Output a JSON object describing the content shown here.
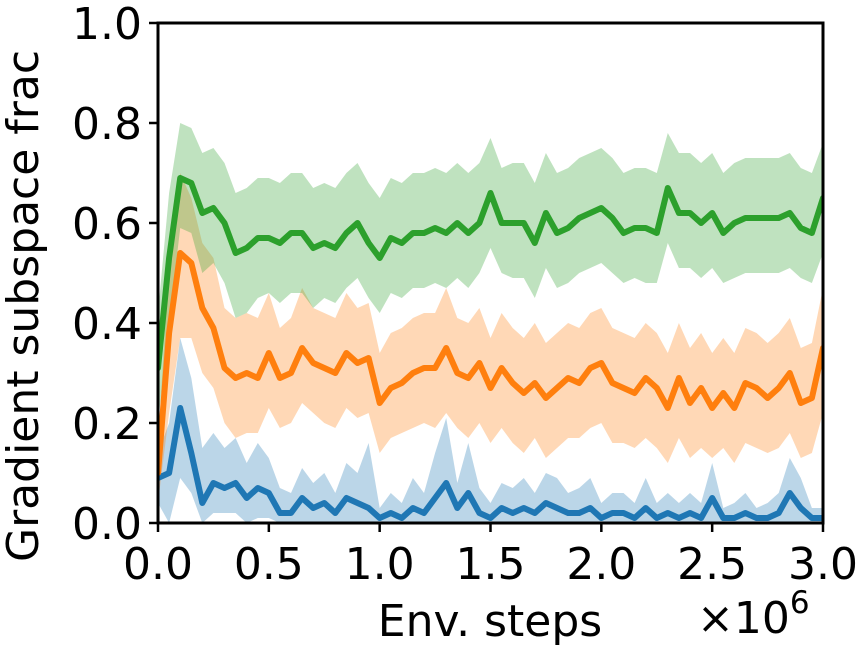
{
  "chart_data": {
    "type": "line",
    "title": "",
    "xlabel": "Env. steps",
    "x_multiplier": "×10",
    "x_multiplier_exp": "6",
    "ylabel": "Gradient subspace frac",
    "xlim": [
      0.0,
      3.0
    ],
    "ylim": [
      0.0,
      1.0
    ],
    "grid": false,
    "legend": "none",
    "xticks": [
      "0.0",
      "0.5",
      "1.0",
      "1.5",
      "2.0",
      "2.5",
      "3.0"
    ],
    "yticks": [
      "0.0",
      "0.2",
      "0.4",
      "0.6",
      "0.8",
      "1.0"
    ],
    "series": [
      {
        "color": "#1f77b4",
        "x": [
          0.0,
          0.05,
          0.1,
          0.15,
          0.2,
          0.25,
          0.3,
          0.35,
          0.4,
          0.45,
          0.5,
          0.55,
          0.6,
          0.65,
          0.7,
          0.75,
          0.8,
          0.85,
          0.9,
          0.95,
          1.0,
          1.05,
          1.1,
          1.15,
          1.2,
          1.25,
          1.3,
          1.35,
          1.4,
          1.45,
          1.5,
          1.55,
          1.6,
          1.65,
          1.7,
          1.75,
          1.8,
          1.85,
          1.9,
          1.95,
          2.0,
          2.05,
          2.1,
          2.15,
          2.2,
          2.25,
          2.3,
          2.35,
          2.4,
          2.45,
          2.5,
          2.55,
          2.6,
          2.65,
          2.7,
          2.75,
          2.8,
          2.85,
          2.9,
          2.95,
          3.0
        ],
        "y": [
          0.09,
          0.1,
          0.23,
          0.14,
          0.04,
          0.08,
          0.07,
          0.08,
          0.05,
          0.07,
          0.06,
          0.02,
          0.02,
          0.05,
          0.03,
          0.04,
          0.02,
          0.05,
          0.04,
          0.03,
          0.01,
          0.02,
          0.01,
          0.03,
          0.02,
          0.05,
          0.08,
          0.03,
          0.06,
          0.02,
          0.01,
          0.03,
          0.02,
          0.03,
          0.02,
          0.04,
          0.03,
          0.02,
          0.02,
          0.03,
          0.01,
          0.02,
          0.02,
          0.01,
          0.03,
          0.01,
          0.02,
          0.01,
          0.02,
          0.01,
          0.05,
          0.01,
          0.01,
          0.02,
          0.01,
          0.01,
          0.02,
          0.06,
          0.03,
          0.01,
          0.01
        ],
        "lower": [
          0.04,
          0.0,
          0.09,
          0.06,
          0.0,
          0.02,
          0.02,
          0.02,
          0.0,
          0.01,
          0.01,
          0.0,
          0.0,
          0.0,
          0.0,
          0.0,
          0.0,
          0.0,
          0.0,
          0.0,
          0.0,
          0.0,
          0.0,
          0.0,
          0.0,
          0.0,
          0.0,
          0.0,
          0.0,
          0.0,
          0.0,
          0.0,
          0.0,
          0.0,
          0.0,
          0.0,
          0.0,
          0.0,
          0.0,
          0.0,
          0.0,
          0.0,
          0.0,
          0.0,
          0.0,
          0.0,
          0.0,
          0.0,
          0.0,
          0.0,
          0.0,
          0.0,
          0.0,
          0.0,
          0.0,
          0.0,
          0.0,
          0.0,
          0.0,
          0.0,
          0.0
        ],
        "upper": [
          0.14,
          0.2,
          0.37,
          0.29,
          0.15,
          0.18,
          0.15,
          0.17,
          0.12,
          0.16,
          0.13,
          0.07,
          0.06,
          0.11,
          0.08,
          0.1,
          0.06,
          0.12,
          0.1,
          0.16,
          0.03,
          0.06,
          0.04,
          0.09,
          0.06,
          0.14,
          0.21,
          0.08,
          0.16,
          0.07,
          0.04,
          0.08,
          0.07,
          0.09,
          0.06,
          0.1,
          0.09,
          0.06,
          0.07,
          0.09,
          0.04,
          0.06,
          0.06,
          0.04,
          0.09,
          0.04,
          0.06,
          0.04,
          0.06,
          0.04,
          0.12,
          0.03,
          0.04,
          0.06,
          0.03,
          0.04,
          0.06,
          0.13,
          0.09,
          0.03,
          0.03
        ]
      },
      {
        "color": "#ff7f0e",
        "x": [
          0.0,
          0.05,
          0.1,
          0.15,
          0.2,
          0.25,
          0.3,
          0.35,
          0.4,
          0.45,
          0.5,
          0.55,
          0.6,
          0.65,
          0.7,
          0.75,
          0.8,
          0.85,
          0.9,
          0.95,
          1.0,
          1.05,
          1.1,
          1.15,
          1.2,
          1.25,
          1.3,
          1.35,
          1.4,
          1.45,
          1.5,
          1.55,
          1.6,
          1.65,
          1.7,
          1.75,
          1.8,
          1.85,
          1.9,
          1.95,
          2.0,
          2.05,
          2.1,
          2.15,
          2.2,
          2.25,
          2.3,
          2.35,
          2.4,
          2.45,
          2.5,
          2.55,
          2.6,
          2.65,
          2.7,
          2.75,
          2.8,
          2.85,
          2.9,
          2.95,
          3.0
        ],
        "y": [
          0.1,
          0.38,
          0.54,
          0.52,
          0.43,
          0.39,
          0.31,
          0.29,
          0.3,
          0.29,
          0.34,
          0.29,
          0.3,
          0.35,
          0.32,
          0.31,
          0.3,
          0.34,
          0.32,
          0.33,
          0.24,
          0.27,
          0.28,
          0.3,
          0.31,
          0.31,
          0.35,
          0.3,
          0.29,
          0.32,
          0.27,
          0.31,
          0.28,
          0.26,
          0.28,
          0.25,
          0.27,
          0.29,
          0.28,
          0.31,
          0.32,
          0.28,
          0.27,
          0.26,
          0.29,
          0.27,
          0.23,
          0.29,
          0.24,
          0.27,
          0.23,
          0.26,
          0.23,
          0.28,
          0.27,
          0.25,
          0.27,
          0.3,
          0.24,
          0.25,
          0.35
        ],
        "lower": [
          0.04,
          0.22,
          0.37,
          0.37,
          0.3,
          0.27,
          0.2,
          0.17,
          0.18,
          0.18,
          0.23,
          0.19,
          0.2,
          0.24,
          0.22,
          0.2,
          0.19,
          0.23,
          0.21,
          0.22,
          0.14,
          0.17,
          0.18,
          0.19,
          0.2,
          0.19,
          0.22,
          0.19,
          0.17,
          0.2,
          0.16,
          0.19,
          0.16,
          0.14,
          0.17,
          0.13,
          0.15,
          0.17,
          0.17,
          0.19,
          0.2,
          0.16,
          0.16,
          0.15,
          0.17,
          0.15,
          0.12,
          0.17,
          0.13,
          0.15,
          0.13,
          0.15,
          0.12,
          0.16,
          0.15,
          0.14,
          0.15,
          0.18,
          0.13,
          0.14,
          0.22
        ],
        "upper": [
          0.16,
          0.52,
          0.7,
          0.65,
          0.56,
          0.53,
          0.43,
          0.41,
          0.42,
          0.41,
          0.46,
          0.39,
          0.41,
          0.47,
          0.43,
          0.42,
          0.41,
          0.46,
          0.43,
          0.44,
          0.34,
          0.38,
          0.39,
          0.41,
          0.42,
          0.42,
          0.47,
          0.41,
          0.4,
          0.43,
          0.37,
          0.42,
          0.39,
          0.37,
          0.4,
          0.36,
          0.38,
          0.4,
          0.39,
          0.42,
          0.43,
          0.39,
          0.38,
          0.37,
          0.4,
          0.38,
          0.34,
          0.4,
          0.35,
          0.38,
          0.34,
          0.37,
          0.34,
          0.39,
          0.38,
          0.36,
          0.38,
          0.41,
          0.35,
          0.36,
          0.47
        ]
      },
      {
        "color": "#2ca02c",
        "x": [
          0.0,
          0.05,
          0.1,
          0.15,
          0.2,
          0.25,
          0.3,
          0.35,
          0.4,
          0.45,
          0.5,
          0.55,
          0.6,
          0.65,
          0.7,
          0.75,
          0.8,
          0.85,
          0.9,
          0.95,
          1.0,
          1.05,
          1.1,
          1.15,
          1.2,
          1.25,
          1.3,
          1.35,
          1.4,
          1.45,
          1.5,
          1.55,
          1.6,
          1.65,
          1.7,
          1.75,
          1.8,
          1.85,
          1.9,
          1.95,
          2.0,
          2.05,
          2.1,
          2.15,
          2.2,
          2.25,
          2.3,
          2.35,
          2.4,
          2.45,
          2.5,
          2.55,
          2.6,
          2.65,
          2.7,
          2.75,
          2.8,
          2.85,
          2.9,
          2.95,
          3.0
        ],
        "y": [
          0.31,
          0.53,
          0.69,
          0.68,
          0.62,
          0.63,
          0.6,
          0.54,
          0.55,
          0.57,
          0.57,
          0.56,
          0.58,
          0.58,
          0.55,
          0.56,
          0.55,
          0.58,
          0.6,
          0.56,
          0.53,
          0.57,
          0.56,
          0.58,
          0.58,
          0.59,
          0.58,
          0.6,
          0.58,
          0.6,
          0.66,
          0.6,
          0.6,
          0.6,
          0.56,
          0.62,
          0.58,
          0.59,
          0.61,
          0.62,
          0.63,
          0.61,
          0.58,
          0.59,
          0.59,
          0.58,
          0.67,
          0.62,
          0.62,
          0.6,
          0.62,
          0.58,
          0.6,
          0.61,
          0.61,
          0.61,
          0.61,
          0.62,
          0.59,
          0.58,
          0.65
        ],
        "lower": [
          0.2,
          0.4,
          0.59,
          0.58,
          0.5,
          0.52,
          0.48,
          0.41,
          0.42,
          0.45,
          0.46,
          0.44,
          0.46,
          0.46,
          0.43,
          0.45,
          0.44,
          0.47,
          0.49,
          0.45,
          0.42,
          0.46,
          0.45,
          0.47,
          0.47,
          0.48,
          0.47,
          0.49,
          0.47,
          0.5,
          0.55,
          0.5,
          0.49,
          0.49,
          0.45,
          0.51,
          0.47,
          0.48,
          0.5,
          0.51,
          0.52,
          0.5,
          0.48,
          0.49,
          0.48,
          0.48,
          0.56,
          0.51,
          0.51,
          0.49,
          0.51,
          0.48,
          0.49,
          0.5,
          0.5,
          0.5,
          0.5,
          0.51,
          0.49,
          0.48,
          0.54
        ],
        "upper": [
          0.42,
          0.66,
          0.8,
          0.79,
          0.74,
          0.75,
          0.72,
          0.66,
          0.67,
          0.69,
          0.69,
          0.68,
          0.7,
          0.7,
          0.67,
          0.68,
          0.67,
          0.7,
          0.72,
          0.68,
          0.65,
          0.69,
          0.68,
          0.7,
          0.7,
          0.71,
          0.7,
          0.72,
          0.7,
          0.72,
          0.77,
          0.71,
          0.72,
          0.72,
          0.68,
          0.74,
          0.7,
          0.71,
          0.73,
          0.74,
          0.75,
          0.73,
          0.7,
          0.71,
          0.71,
          0.7,
          0.78,
          0.74,
          0.74,
          0.72,
          0.74,
          0.7,
          0.72,
          0.73,
          0.73,
          0.73,
          0.73,
          0.74,
          0.71,
          0.7,
          0.76
        ]
      }
    ]
  }
}
